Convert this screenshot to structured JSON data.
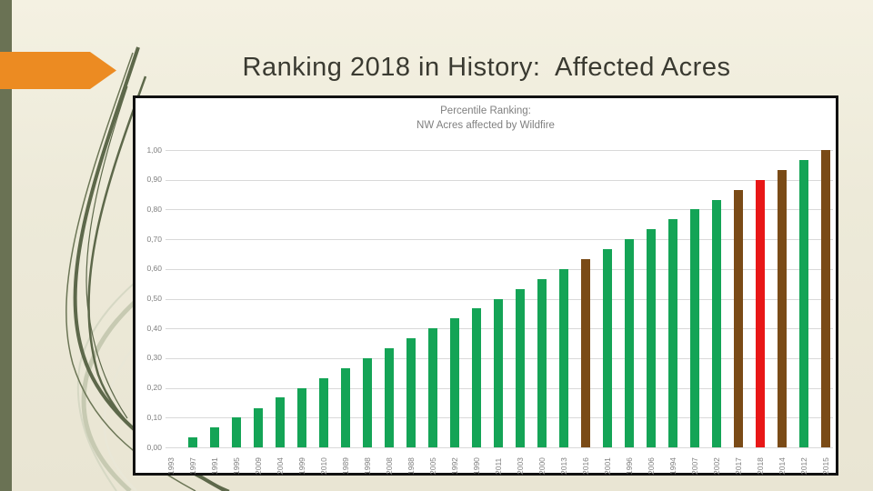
{
  "slide": {
    "title": "Ranking 2018 in History:  Affected Acres"
  },
  "chart": {
    "title_line1": "Percentile Ranking:",
    "title_line2": "NW Acres affected by Wildfire"
  },
  "chart_data": {
    "type": "bar",
    "title": "Percentile Ranking: NW Acres affected by Wildfire",
    "xlabel": "",
    "ylabel": "",
    "ylim": [
      0,
      1
    ],
    "grid": true,
    "legend": false,
    "y_tick_labels": [
      "0,00",
      "0,10",
      "0,20",
      "0,30",
      "0,40",
      "0,50",
      "0,60",
      "0,70",
      "0,80",
      "0,90",
      "1,00"
    ],
    "categories": [
      "1993",
      "1997",
      "1991",
      "1995",
      "2009",
      "2004",
      "1999",
      "2010",
      "1989",
      "1998",
      "2008",
      "1988",
      "2005",
      "1992",
      "1990",
      "2011",
      "2003",
      "2000",
      "2013",
      "2016",
      "2001",
      "1996",
      "2006",
      "1994",
      "2007",
      "2002",
      "2017",
      "2018",
      "2014",
      "2012",
      "2015"
    ],
    "values": [
      0.0,
      0.033,
      0.067,
      0.1,
      0.133,
      0.167,
      0.2,
      0.233,
      0.267,
      0.3,
      0.333,
      0.367,
      0.4,
      0.433,
      0.467,
      0.5,
      0.533,
      0.567,
      0.6,
      0.633,
      0.667,
      0.7,
      0.733,
      0.767,
      0.8,
      0.833,
      0.867,
      0.9,
      0.933,
      0.967,
      1.0
    ],
    "bar_color_names": [
      "green",
      "green",
      "green",
      "green",
      "green",
      "green",
      "green",
      "green",
      "green",
      "green",
      "green",
      "green",
      "green",
      "green",
      "green",
      "green",
      "green",
      "green",
      "green",
      "brown",
      "green",
      "green",
      "green",
      "green",
      "green",
      "green",
      "brown",
      "red",
      "brown",
      "green",
      "brown"
    ],
    "colors": {
      "green": "#14A456",
      "brown": "#7A4B17",
      "red": "#E81717"
    }
  }
}
